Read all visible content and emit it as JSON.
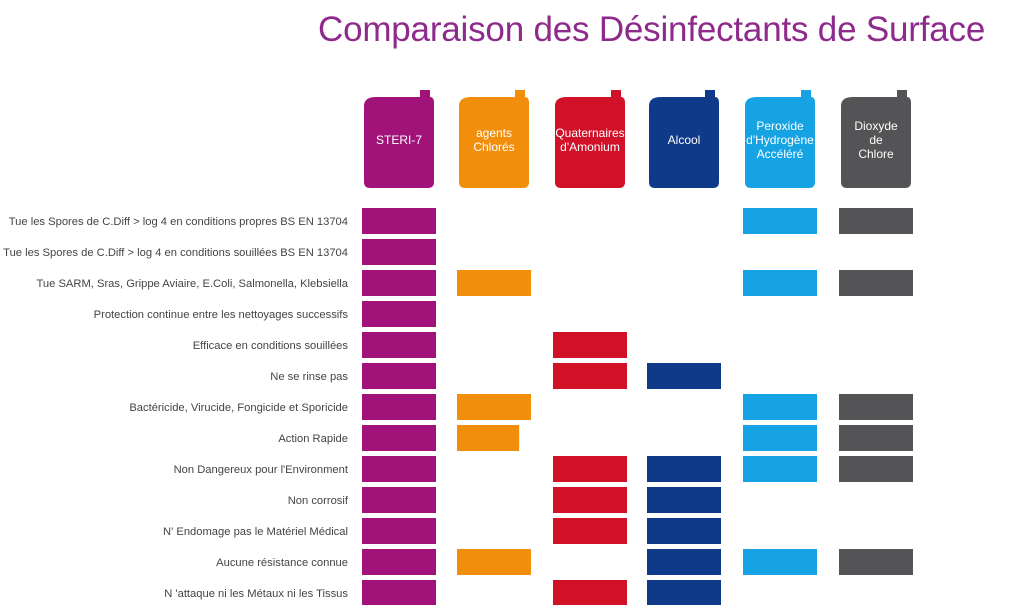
{
  "title": "Comparaison des Désinfectants de Surface",
  "chart_data": {
    "type": "table",
    "title": "Comparaison des Désinfectants de Surface",
    "products": [
      {
        "name": "STERI-7",
        "lines": [
          "STERI-7"
        ],
        "color": "#a2137a"
      },
      {
        "name": "agents Chlorés",
        "lines": [
          "agents",
          "Chlorés"
        ],
        "color": "#f18e0c"
      },
      {
        "name": "Quaternaires d'Amonium",
        "lines": [
          "Quaternaires",
          "d'Amonium"
        ],
        "color": "#d11127"
      },
      {
        "name": "Alcool",
        "lines": [
          "Alcool"
        ],
        "color": "#0f3a8a"
      },
      {
        "name": "Peroxide d'Hydrogène Accéléré",
        "lines": [
          "Peroxide",
          "d'Hydrogène",
          "Accéléré"
        ],
        "color": "#16a3e4"
      },
      {
        "name": "Dioxyde de Chlore",
        "lines": [
          "Dioxyde",
          "de",
          "Chlore"
        ],
        "color": "#545456"
      }
    ],
    "criteria": [
      "Tue les Spores de C.Diff > log 4 en conditions propres BS EN 13704",
      "Tue les Spores de C.Diff > log 4 en conditions souillées BS EN 13704",
      "Tue SARM, Sras, Grippe Aviaire, E.Coli, Salmonella, Klebsiella",
      "Protection continue entre les nettoyages successifs",
      "Efficace en conditions souillées",
      "Ne se rinse pas",
      "Bactéricide, Virucide, Fongicide et Sporicide",
      "Action Rapide",
      "Non Dangereux pour l'Environment",
      "Non corrosif",
      "N' Endomage pas le  Matériel Médical",
      "Aucune résistance connue",
      "N 'attaque ni les Métaux ni les Tissus"
    ],
    "values": [
      [
        1,
        0,
        0,
        0,
        1,
        1
      ],
      [
        1,
        0,
        0,
        0,
        0,
        0
      ],
      [
        1,
        1,
        0,
        0,
        1,
        1
      ],
      [
        1,
        0,
        0,
        0,
        0,
        0
      ],
      [
        1,
        0,
        1,
        0,
        0,
        0
      ],
      [
        1,
        0,
        1,
        1,
        0,
        0
      ],
      [
        1,
        1,
        0,
        0,
        1,
        1
      ],
      [
        1,
        0.84,
        0,
        0,
        1,
        1
      ],
      [
        1,
        0,
        1,
        1,
        1,
        1
      ],
      [
        1,
        0,
        1,
        1,
        0,
        0
      ],
      [
        1,
        0,
        1,
        1,
        0,
        0
      ],
      [
        1,
        1,
        0,
        1,
        1,
        1
      ],
      [
        1,
        0,
        1,
        1,
        0,
        0
      ]
    ]
  }
}
